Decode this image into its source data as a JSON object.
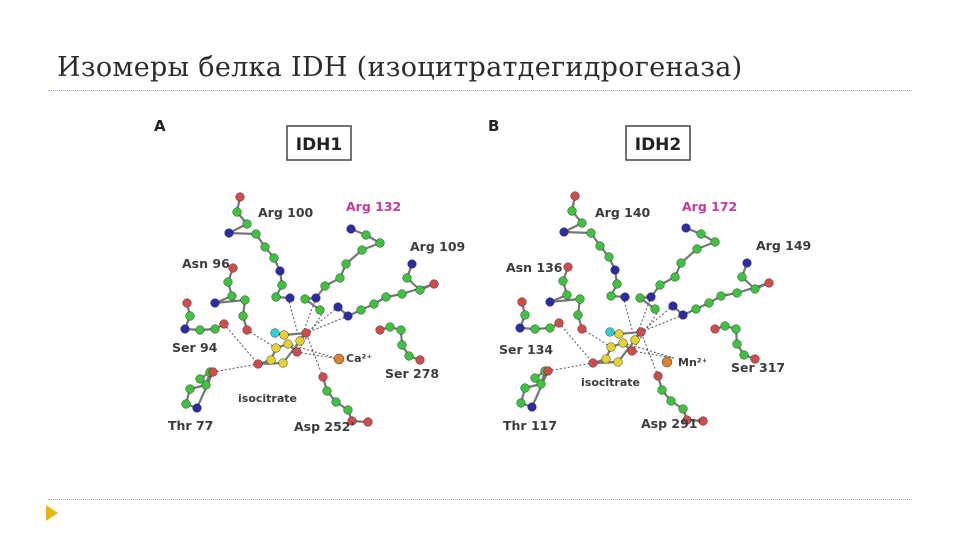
{
  "title": "Изомеры белка IDH (изоцитратдегидрогеназа)",
  "panels": [
    {
      "letter": "A",
      "enzyme": "IDH1",
      "residues": {
        "arg_a": "Arg 100",
        "arg_mut": "Arg 132",
        "arg_b": "Arg 109",
        "asn": "Asn 96",
        "ser_a": "Ser 94",
        "ser_b": "Ser 278",
        "thr": "Thr 77",
        "asp": "Asp 252'",
        "ion": "Ca²⁺",
        "ligand": "isocitrate"
      }
    },
    {
      "letter": "B",
      "enzyme": "IDH2",
      "residues": {
        "arg_a": "Arg 140",
        "arg_mut": "Arg 172",
        "arg_b": "Arg 149",
        "asn": "Asn 136",
        "ser_a": "Ser 134",
        "ser_b": "Ser 317",
        "thr": "Thr 117",
        "asp": "Asp 291'",
        "ion": "Mn²⁺",
        "ligand": "isocitrate"
      }
    }
  ],
  "atom_colors": {
    "carbon": "#3cc43c",
    "nitrogen": "#2b2ba8",
    "oxygen": "#d24a4a",
    "ligand": "#e6d22a",
    "metal": "#d9842a",
    "water": "#2fd0d6"
  }
}
